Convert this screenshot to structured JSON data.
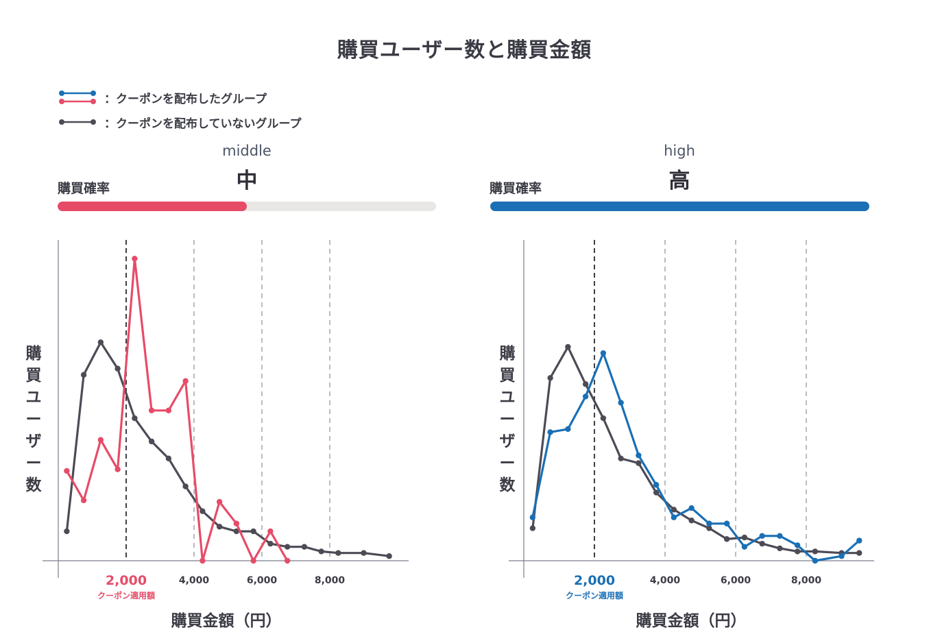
{
  "title": "購買ユーザー数と購買金額",
  "legend": [
    {
      "label": "：クーポンを配布したグループ",
      "colors": [
        "#1a6fb5",
        "#e64c68"
      ]
    },
    {
      "label": "：クーポンを配布していないグループ",
      "colors": [
        "#4d4b55"
      ]
    }
  ],
  "colors": {
    "pink": "#e64c68",
    "blue": "#1a6fb5",
    "gray": "#4d4b55",
    "track": "#e8e7e6"
  },
  "chart_data": [
    {
      "type": "line",
      "panel_label": "middle",
      "panel_level": "中",
      "prob_label": "購買確率",
      "prob_value": 0.5,
      "accent": "#e64c68",
      "xlabel": "購買金額（円）",
      "ylabel": "購買ユーザー数",
      "x_ticks": [
        "2,000",
        "4,000",
        "6,000",
        "8,000"
      ],
      "x_tick_values": [
        2000,
        4000,
        6000,
        8000
      ],
      "coupon_threshold": 2000,
      "coupon_label": "クーポン適用額",
      "xlim": [
        0,
        10000
      ],
      "ylim": [
        0,
        100
      ],
      "grid": "vertical dashed",
      "series": [
        {
          "color": "#4d4b55",
          "x": [
            250,
            750,
            1250,
            1750,
            2250,
            2750,
            3250,
            3750,
            4250,
            4750,
            5250,
            5750,
            6250,
            6750,
            7250,
            7750,
            8250,
            9000,
            9750
          ],
          "y": [
            9.5,
            60,
            70.5,
            62,
            46,
            38.5,
            33,
            24,
            16,
            11,
            9.5,
            9.5,
            5.5,
            4.5,
            4.5,
            3,
            2.5,
            2.5,
            1.5
          ]
        },
        {
          "color": "#e64c68",
          "x": [
            250,
            750,
            1250,
            1750,
            2250,
            2750,
            3250,
            3750,
            4250,
            4750,
            5250,
            5750,
            6250,
            6750
          ],
          "y": [
            29,
            19.5,
            39,
            29.5,
            97.5,
            48.5,
            48.5,
            58,
            0,
            19,
            12,
            0,
            9.5,
            0
          ]
        }
      ]
    },
    {
      "type": "line",
      "panel_label": "high",
      "panel_level": "高",
      "prob_label": "購買確率",
      "prob_value": 1.0,
      "accent": "#1a6fb5",
      "xlabel": "購買金額（円）",
      "ylabel": "購買ユーザー数",
      "x_ticks": [
        "2,000",
        "4,000",
        "6,000",
        "8,000"
      ],
      "x_tick_values": [
        2000,
        4000,
        6000,
        8000
      ],
      "coupon_threshold": 2000,
      "coupon_label": "クーポン適用額",
      "xlim": [
        0,
        10000
      ],
      "ylim": [
        0,
        100
      ],
      "grid": "vertical dashed",
      "series": [
        {
          "color": "#4d4b55",
          "x": [
            250,
            750,
            1250,
            1750,
            2250,
            2750,
            3250,
            3750,
            4250,
            4750,
            5250,
            5750,
            6250,
            6750,
            7250,
            7750,
            8250,
            9000,
            9500
          ],
          "y": [
            10.5,
            59,
            69,
            57,
            46,
            33,
            31.5,
            22,
            16.5,
            13,
            10.5,
            7,
            7.5,
            5.5,
            4,
            3,
            3,
            2.5,
            2.5
          ]
        },
        {
          "color": "#1a6fb5",
          "x": [
            250,
            750,
            1250,
            1750,
            2250,
            2750,
            3250,
            3750,
            4250,
            4750,
            5250,
            5750,
            6250,
            6750,
            7250,
            7750,
            8250,
            9000,
            9500
          ],
          "y": [
            14,
            41.5,
            42.5,
            53,
            67,
            51,
            34,
            24.5,
            14,
            17,
            12,
            12,
            4.5,
            8,
            8,
            5,
            0,
            1.5,
            6.5
          ]
        }
      ]
    }
  ]
}
